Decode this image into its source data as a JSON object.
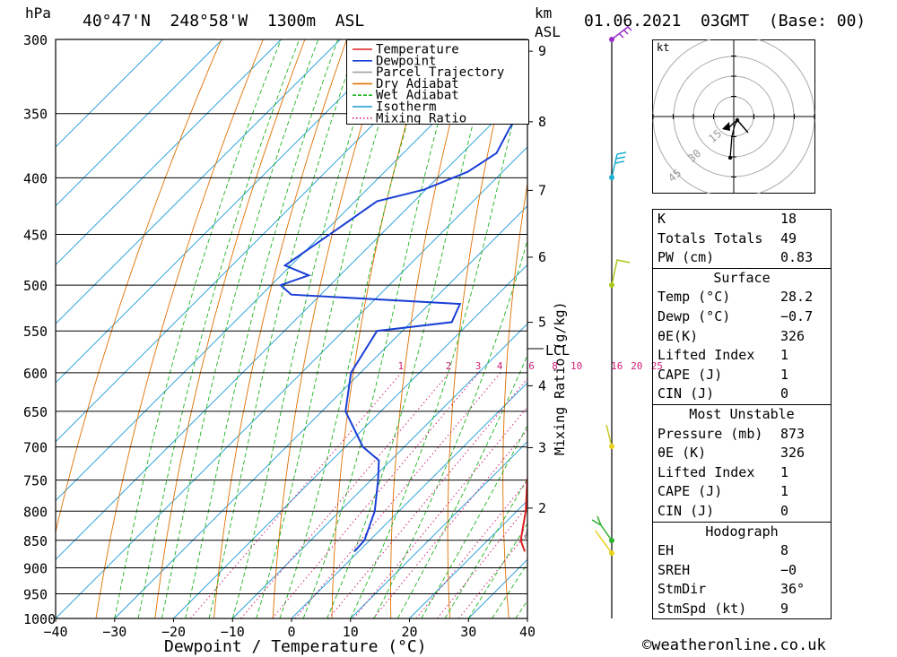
{
  "header": {
    "location": "40°47'N  248°58'W  1300m  ASL",
    "datetime": "01.06.2021  03GMT  (Base: 00)",
    "hpa_label": "hPa",
    "km_label": "km",
    "asl_label": "ASL"
  },
  "axes": {
    "x_title": "Dewpoint / Temperature (°C)",
    "mixing_title": "Mixing Ratio (g/kg)",
    "lcl_label": "LCL",
    "pressure_ticks": [
      300,
      350,
      400,
      450,
      500,
      550,
      600,
      650,
      700,
      750,
      800,
      850,
      900,
      950,
      1000
    ],
    "temp_ticks": [
      -40,
      -30,
      -20,
      -10,
      0,
      10,
      20,
      30,
      40
    ],
    "km_ticks": [
      9,
      8,
      7,
      6,
      5,
      4,
      3,
      2
    ],
    "mixing_ticks": [
      "1",
      "2",
      "3",
      "4",
      "6",
      "8",
      "10",
      "16",
      "20",
      "25"
    ]
  },
  "legend": [
    {
      "label": "Temperature",
      "color": "#e02020",
      "style": "solid"
    },
    {
      "label": "Dewpoint",
      "color": "#1a3fd6",
      "style": "solid"
    },
    {
      "label": "Parcel Trajectory",
      "color": "#a0a0a0",
      "style": "solid"
    },
    {
      "label": "Dry Adiabat",
      "color": "#e07000",
      "style": "solid"
    },
    {
      "label": "Wet Adiabat",
      "color": "#1db31d",
      "style": "dashed"
    },
    {
      "label": "Isotherm",
      "color": "#1a9ad6",
      "style": "solid"
    },
    {
      "label": "Mixing Ratio",
      "color": "#d0207a",
      "style": "dotted"
    }
  ],
  "chart_data": {
    "type": "line",
    "title": "40°47'N  248°58'W  1300m  ASL",
    "xlabel": "Dewpoint / Temperature (°C)",
    "ylabel": "hPa",
    "xlim": [
      -40,
      40
    ],
    "ylim": [
      1000,
      300
    ],
    "y_scale": "log",
    "skew": true,
    "series": [
      {
        "name": "Temperature",
        "color": "#e02020",
        "points": [
          [
            870,
            28.2
          ],
          [
            850,
            25.6
          ],
          [
            800,
            21.5
          ],
          [
            750,
            16.5
          ],
          [
            720,
            14.0
          ],
          [
            700,
            12.6
          ],
          [
            650,
            8.8
          ],
          [
            600,
            4.7
          ],
          [
            550,
            0.4
          ],
          [
            520,
            -1.6
          ],
          [
            500,
            -4.2
          ],
          [
            485,
            -5.4
          ],
          [
            450,
            -9.6
          ],
          [
            420,
            -13.3
          ],
          [
            400,
            -16.2
          ],
          [
            375,
            -19.9
          ],
          [
            350,
            -24.2
          ],
          [
            325,
            -28.9
          ],
          [
            315,
            -31.0
          ],
          [
            300,
            -34.6
          ]
        ]
      },
      {
        "name": "Dewpoint",
        "color": "#1a3fd6",
        "points": [
          [
            870,
            -0.7
          ],
          [
            850,
            -0.9
          ],
          [
            800,
            -4.1
          ],
          [
            750,
            -8.8
          ],
          [
            720,
            -12.0
          ],
          [
            700,
            -17.0
          ],
          [
            650,
            -26.0
          ],
          [
            600,
            -31.6
          ],
          [
            550,
            -34.3
          ],
          [
            540,
            -23.1
          ],
          [
            520,
            -24.8
          ],
          [
            510,
            -55.0
          ],
          [
            500,
            -58.4
          ],
          [
            490,
            -55.3
          ],
          [
            480,
            -61.0
          ],
          [
            450,
            -58.7
          ],
          [
            420,
            -56.3
          ],
          [
            410,
            -50.3
          ],
          [
            395,
            -45.9
          ],
          [
            380,
            -44.2
          ],
          [
            360,
            -46.3
          ],
          [
            340,
            -47.5
          ],
          [
            318,
            -54.1
          ],
          [
            300,
            -56.5
          ]
        ]
      },
      {
        "name": "Parcel Trajectory",
        "color": "#a0a0a0",
        "points": [
          [
            850,
            26.3
          ],
          [
            800,
            22.6
          ],
          [
            750,
            18.2
          ],
          [
            700,
            13.6
          ],
          [
            650,
            8.6
          ],
          [
            600,
            4.7
          ],
          [
            582,
            3.4
          ],
          [
            550,
            -0.2
          ],
          [
            500,
            -4.5
          ],
          [
            450,
            -9.2
          ],
          [
            400,
            -14.6
          ],
          [
            350,
            -22.0
          ],
          [
            300,
            -30.5
          ]
        ]
      }
    ]
  },
  "hodograph": {
    "unit_label": "kt",
    "ring_labels": [
      "15",
      "30",
      "45"
    ]
  },
  "stats": {
    "indices": [
      {
        "label": "K",
        "value": "18"
      },
      {
        "label": "Totals Totals",
        "value": "49"
      },
      {
        "label": "PW (cm)",
        "value": "0.83"
      }
    ],
    "surface_title": "Surface",
    "surface": [
      {
        "label": "Temp (°C)",
        "value": "28.2"
      },
      {
        "label": "Dewp (°C)",
        "value": "−0.7"
      },
      {
        "label": "θE(K)",
        "value": "326"
      },
      {
        "label": "Lifted Index",
        "value": "1"
      },
      {
        "label": "CAPE (J)",
        "value": "1"
      },
      {
        "label": "CIN (J)",
        "value": "0"
      }
    ],
    "unstable_title": "Most Unstable",
    "unstable": [
      {
        "label": "Pressure (mb)",
        "value": "873"
      },
      {
        "label": "θE (K)",
        "value": "326"
      },
      {
        "label": "Lifted Index",
        "value": "1"
      },
      {
        "label": "CAPE (J)",
        "value": "1"
      },
      {
        "label": "CIN (J)",
        "value": "0"
      }
    ],
    "hodo_title": "Hodograph",
    "hodo": [
      {
        "label": "EH",
        "value": "8"
      },
      {
        "label": "SREH",
        "value": "−0"
      },
      {
        "label": "StmDir",
        "value": "36°"
      },
      {
        "label": "StmSpd (kt)",
        "value": "9"
      }
    ]
  },
  "footer": "©weatheronline.co.uk"
}
